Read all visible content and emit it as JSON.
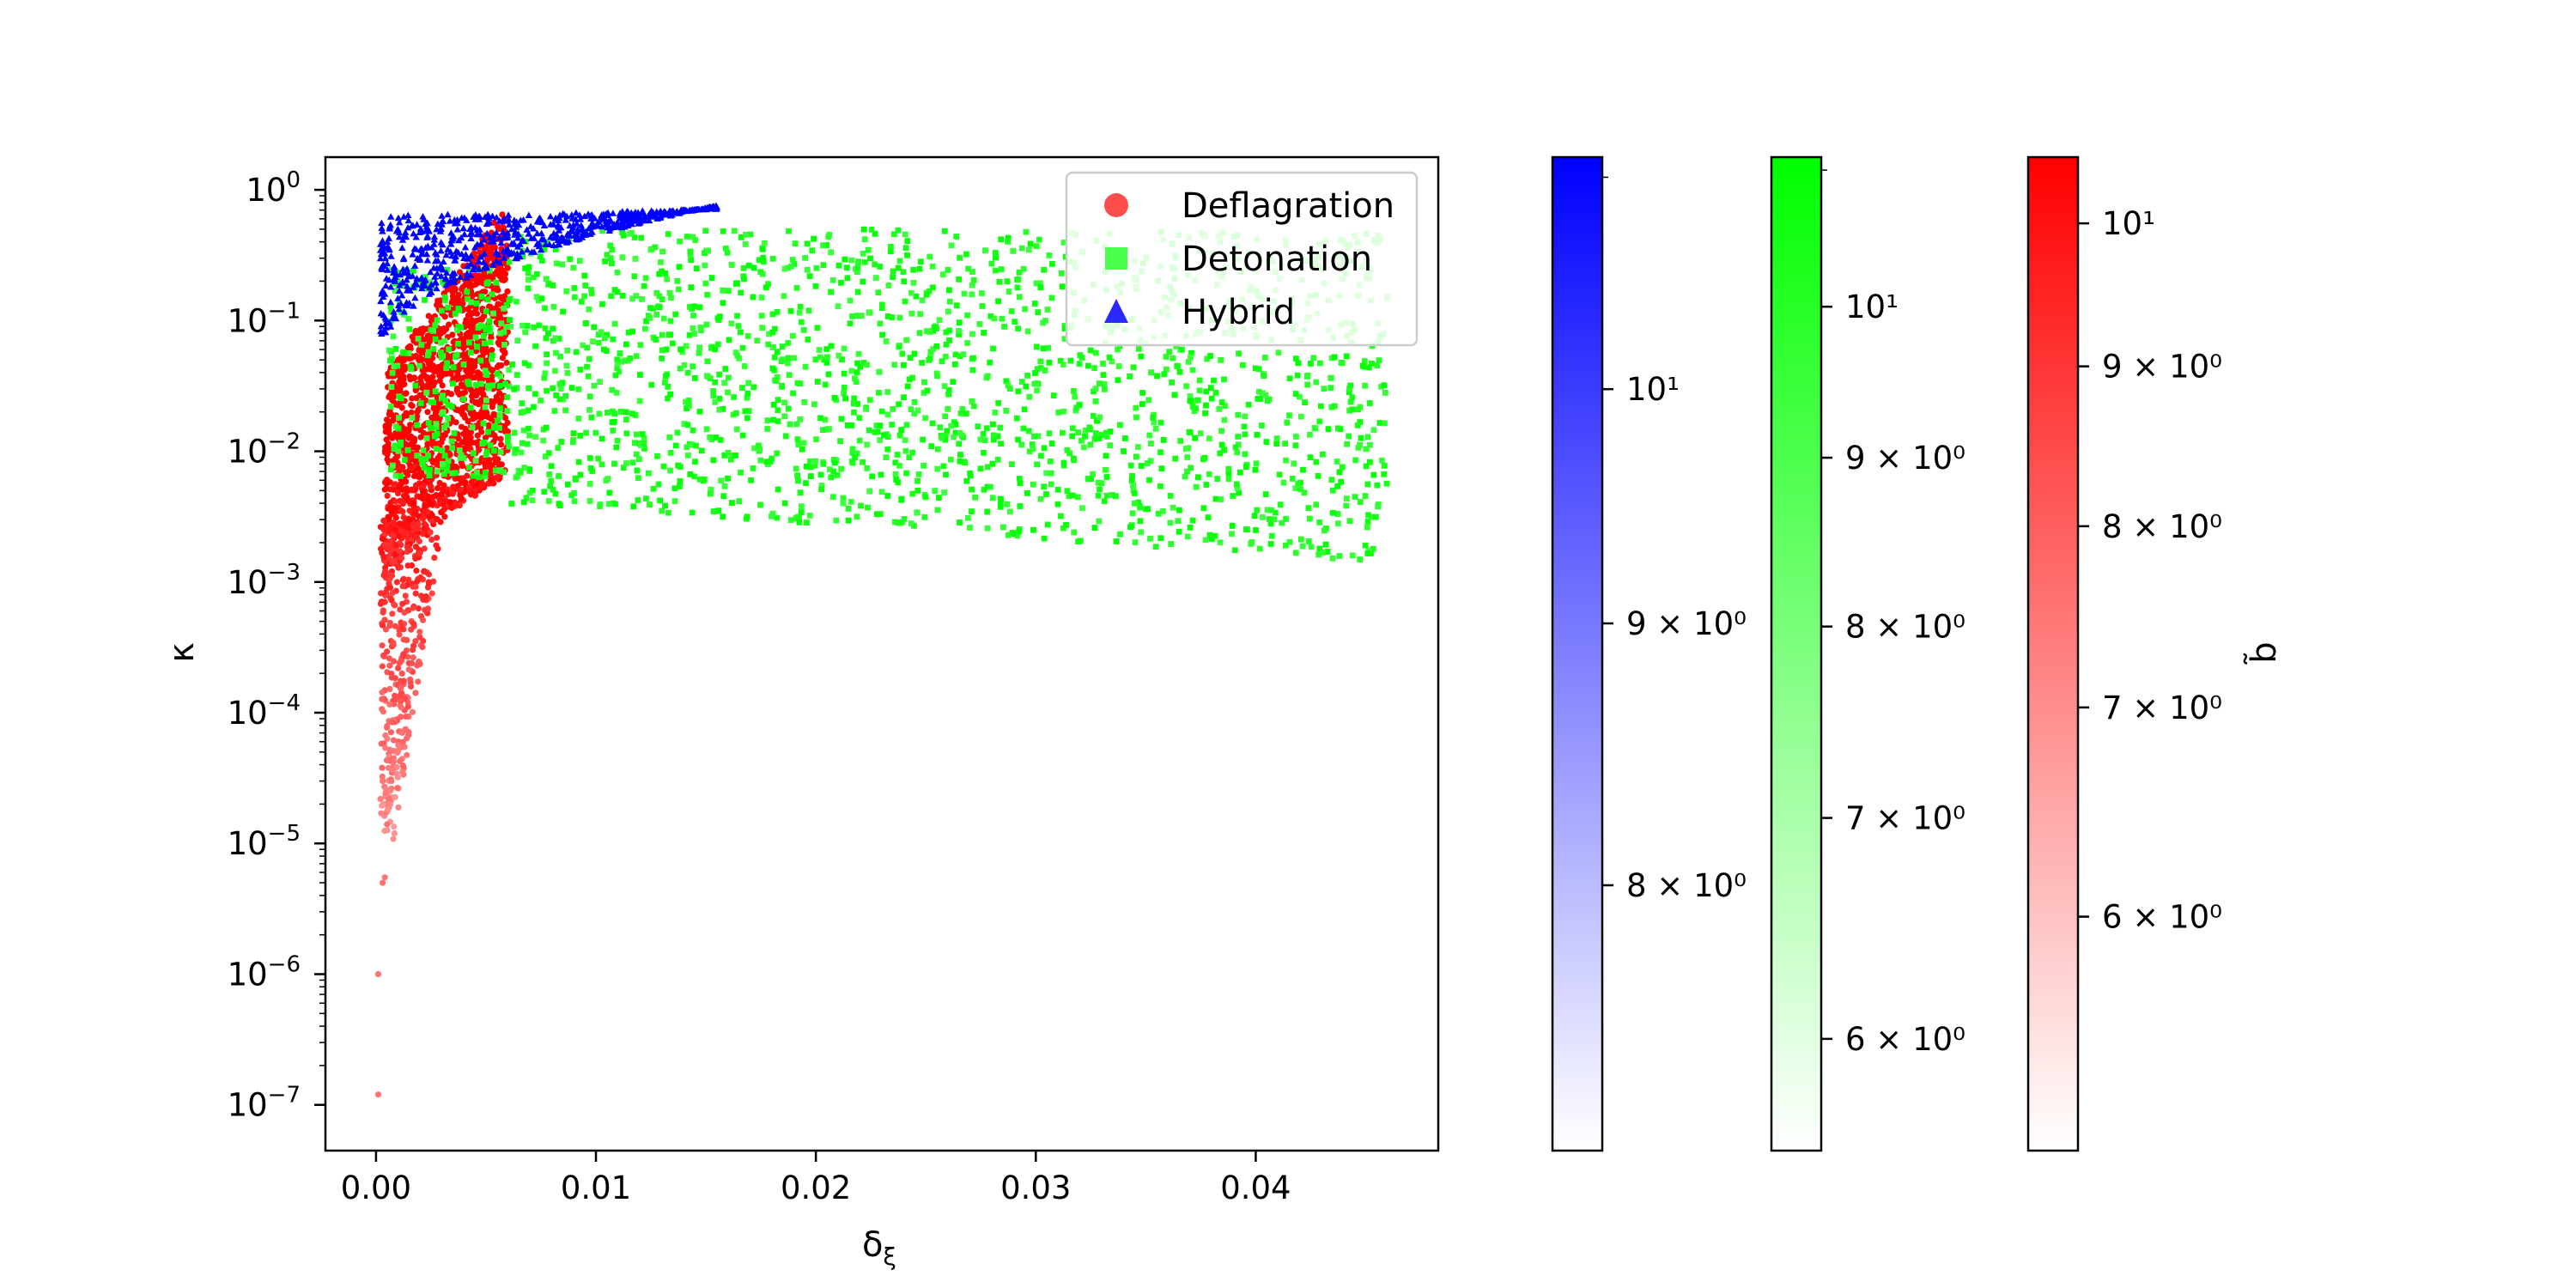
{
  "chart_data": {
    "type": "scatter",
    "xlabel": "δ_ξ",
    "ylabel": "κ",
    "xlim": [
      -0.0023,
      0.0483
    ],
    "ylim": [
      -7.35,
      0.25
    ],
    "yscale": "log",
    "x_ticks": [
      {
        "value": 0.0,
        "label": "0.00"
      },
      {
        "value": 0.01,
        "label": "0.01"
      },
      {
        "value": 0.02,
        "label": "0.02"
      },
      {
        "value": 0.03,
        "label": "0.03"
      },
      {
        "value": 0.04,
        "label": "0.04"
      }
    ],
    "y_ticks": [
      {
        "exp": 0,
        "base": "10",
        "sup": "0"
      },
      {
        "exp": -1,
        "base": "10",
        "sup": "−1"
      },
      {
        "exp": -2,
        "base": "10",
        "sup": "−2"
      },
      {
        "exp": -3,
        "base": "10",
        "sup": "−3"
      },
      {
        "exp": -4,
        "base": "10",
        "sup": "−4"
      },
      {
        "exp": -5,
        "base": "10",
        "sup": "−5"
      },
      {
        "exp": -6,
        "base": "10",
        "sup": "−6"
      },
      {
        "exp": -7,
        "base": "10",
        "sup": "−7"
      }
    ],
    "grid": false,
    "legend": "top-right",
    "series": [
      {
        "name": "Deflagration",
        "marker": "circle",
        "color": "#ff0000",
        "regions": [
          {
            "count": 1500,
            "x": [
              0.0004,
              0.006
            ],
            "logk_top": [
              -1.4,
              -0.1
            ],
            "logk_bottom": [
              -3.2,
              -2.2
            ]
          },
          {
            "count": 350,
            "x": [
              0.0002,
              0.0025
            ],
            "logk": [
              -5.0,
              -2.5
            ]
          }
        ],
        "points": [
          {
            "x": 0.0001,
            "k": 1.2e-07
          },
          {
            "x": 0.0001,
            "k": 1e-06
          },
          {
            "x": 0.0003,
            "k": 5e-06
          },
          {
            "x": 0.0004,
            "k": 5.5e-06
          },
          {
            "x": 0.0005,
            "k": 1.4e-05
          },
          {
            "x": 0.0006,
            "k": 2.2e-05
          },
          {
            "x": 0.0007,
            "k": 3e-05
          },
          {
            "x": 0.0008,
            "k": 4.5e-05
          }
        ]
      },
      {
        "name": "Detonation",
        "marker": "square",
        "color": "#00ff00",
        "regions": [
          {
            "count": 1800,
            "x": [
              0.006,
              0.046
            ],
            "logk": [
              -2.8,
              -0.25
            ]
          },
          {
            "count": 250,
            "x": [
              0.0006,
              0.006
            ],
            "logk": [
              -2.2,
              -0.6
            ]
          }
        ]
      },
      {
        "name": "Hybrid",
        "marker": "triangle",
        "color": "#0000ff",
        "regions": [
          {
            "count": 650,
            "x": [
              0.0002,
              0.0155
            ],
            "logk_upper": -0.15,
            "logk_lower_start": -1.25
          }
        ]
      }
    ],
    "colorbars": [
      {
        "name": "Hybrid",
        "color": "#0000ff",
        "range": [
          7.1,
          11.1
        ],
        "ticks": [
          {
            "value": 8,
            "label": "8 × 10⁰"
          },
          {
            "value": 9,
            "label": "9 × 10⁰"
          },
          {
            "value": 10,
            "label": "10¹"
          }
        ]
      },
      {
        "name": "Detonation",
        "color": "#00ff00",
        "range": [
          5.55,
          11.1
        ],
        "ticks": [
          {
            "value": 6,
            "label": "6 × 10⁰"
          },
          {
            "value": 7,
            "label": "7 × 10⁰"
          },
          {
            "value": 8,
            "label": "8 × 10⁰"
          },
          {
            "value": 9,
            "label": "9 × 10⁰"
          },
          {
            "value": 10,
            "label": "10¹"
          }
        ]
      },
      {
        "name": "Deflagration",
        "color": "#ff0000",
        "range": [
          5.05,
          10.5
        ],
        "label": "b̃",
        "ticks": [
          {
            "value": 6,
            "label": "6 × 10⁰"
          },
          {
            "value": 7,
            "label": "7 × 10⁰"
          },
          {
            "value": 8,
            "label": "8 × 10⁰"
          },
          {
            "value": 9,
            "label": "9 × 10⁰"
          },
          {
            "value": 10,
            "label": "10¹"
          }
        ]
      }
    ]
  }
}
